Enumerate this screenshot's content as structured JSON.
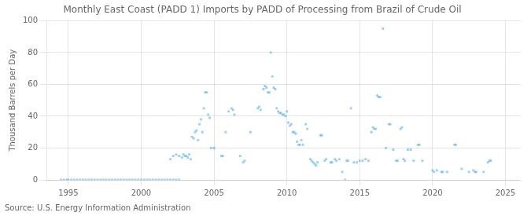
{
  "chart_data": {
    "type": "scatter",
    "title": "Monthly East Coast (PADD 1) Imports by PADD of Processing from Brazil of Crude Oil",
    "y_label": "Thousand Barrels per Day",
    "source": "Source: U.S. Energy Information Administration",
    "marker": "square",
    "grid": true,
    "xlim": [
      1993.5,
      2026
    ],
    "ylim": [
      0,
      100
    ],
    "xticks": [
      1995,
      2000,
      2005,
      2010,
      2015,
      2020,
      2025
    ],
    "yticks": [
      0,
      20,
      40,
      60,
      80,
      100
    ],
    "x": [
      1994.5,
      1994.7,
      1994.9,
      1995,
      1995.2,
      1995.4,
      1995.6,
      1995.8,
      1996,
      1996.2,
      1996.4,
      1996.6,
      1996.8,
      1997,
      1997.2,
      1997.4,
      1997.6,
      1997.8,
      1998,
      1998.2,
      1998.4,
      1998.6,
      1998.8,
      1999,
      1999.2,
      1999.4,
      1999.6,
      1999.8,
      2000,
      2000.2,
      2000.4,
      2000.6,
      2000.8,
      2001,
      2001.2,
      2001.4,
      2001.6,
      2001.8,
      2002,
      2002.2,
      2002.4,
      2002.6,
      2002,
      2002.2,
      2002.4,
      2002.6,
      2002.8,
      2002.9,
      2003,
      2003.1,
      2003.2,
      2003.3,
      2003.4,
      2003.5,
      2003.6,
      2003.7,
      2003.8,
      2003.9,
      2004,
      2004.1,
      2004.2,
      2004.3,
      2004.4,
      2004.5,
      2004.6,
      2004.7,
      2004.8,
      2005,
      2005.5,
      2005.6,
      2005.8,
      2006,
      2006.2,
      2006.3,
      2006.4,
      2006.8,
      2007,
      2007.1,
      2007.5,
      2008,
      2008.1,
      2008.2,
      2008.4,
      2008.5,
      2008.6,
      2008.7,
      2008.8,
      2008.9,
      2009,
      2009.1,
      2009.2,
      2009.3,
      2009.4,
      2009.5,
      2009.6,
      2009.7,
      2009.8,
      2009.9,
      2010,
      2010.1,
      2010.2,
      2010.3,
      2010.4,
      2010.5,
      2010.6,
      2010.7,
      2010.8,
      2010.9,
      2011,
      2011.1,
      2011.3,
      2011.4,
      2011.6,
      2011.7,
      2011.8,
      2011.9,
      2012,
      2012.1,
      2012.3,
      2012.4,
      2012.6,
      2012.7,
      2013,
      2013.1,
      2013.3,
      2013.4,
      2013.6,
      2013.8,
      2014,
      2014.1,
      2014.2,
      2014.4,
      2014.6,
      2014.8,
      2015,
      2015.2,
      2015.4,
      2015.6,
      2015.8,
      2015.9,
      2016,
      2016.1,
      2016.2,
      2016.3,
      2016.4,
      2016.6,
      2016.8,
      2017,
      2017.1,
      2017.3,
      2017.5,
      2017.6,
      2017.8,
      2017.9,
      2018,
      2018.1,
      2018.3,
      2018.5,
      2018.7,
      2019,
      2019.1,
      2019.3,
      2020,
      2020.1,
      2020.3,
      2020.6,
      2020.7,
      2021,
      2021.5,
      2021.6,
      2022,
      2022.5,
      2022.8,
      2022.9,
      2023,
      2023.5,
      2023.8,
      2023.9,
      2024
    ],
    "values": [
      0,
      0,
      0,
      0,
      0,
      0,
      0,
      0,
      0,
      0,
      0,
      0,
      0,
      0,
      0,
      0,
      0,
      0,
      0,
      0,
      0,
      0,
      0,
      0,
      0,
      0,
      0,
      0,
      0,
      0,
      0,
      0,
      0,
      0,
      0,
      0,
      0,
      0,
      0,
      0,
      0,
      0,
      13,
      15,
      16,
      15,
      14,
      16,
      15,
      15,
      14,
      16,
      13,
      27,
      26,
      30,
      31,
      25,
      35,
      38,
      30,
      45,
      55,
      55,
      41,
      39,
      20,
      20,
      15,
      15,
      30,
      43,
      45,
      44,
      41,
      15,
      11,
      12,
      30,
      45,
      46,
      44,
      57,
      59,
      58,
      55,
      55,
      80,
      65,
      58,
      57,
      45,
      43,
      42,
      42,
      41,
      41,
      40,
      43,
      36,
      34,
      35,
      30,
      30,
      29,
      24,
      22,
      22,
      25,
      22,
      35,
      32,
      13,
      12,
      11,
      10,
      9,
      11,
      28,
      28,
      12,
      13,
      11,
      11,
      13,
      12,
      13,
      5,
      0,
      12,
      12,
      45,
      11,
      11,
      12,
      12,
      13,
      12,
      30,
      33,
      32,
      32,
      53,
      52,
      52,
      95,
      20,
      35,
      35,
      19,
      12,
      12,
      32,
      33,
      13,
      12,
      19,
      19,
      12,
      22,
      22,
      12,
      6,
      5,
      6,
      5,
      5,
      5,
      22,
      22,
      7,
      5,
      6,
      5,
      5,
      5,
      11,
      12,
      12
    ]
  }
}
